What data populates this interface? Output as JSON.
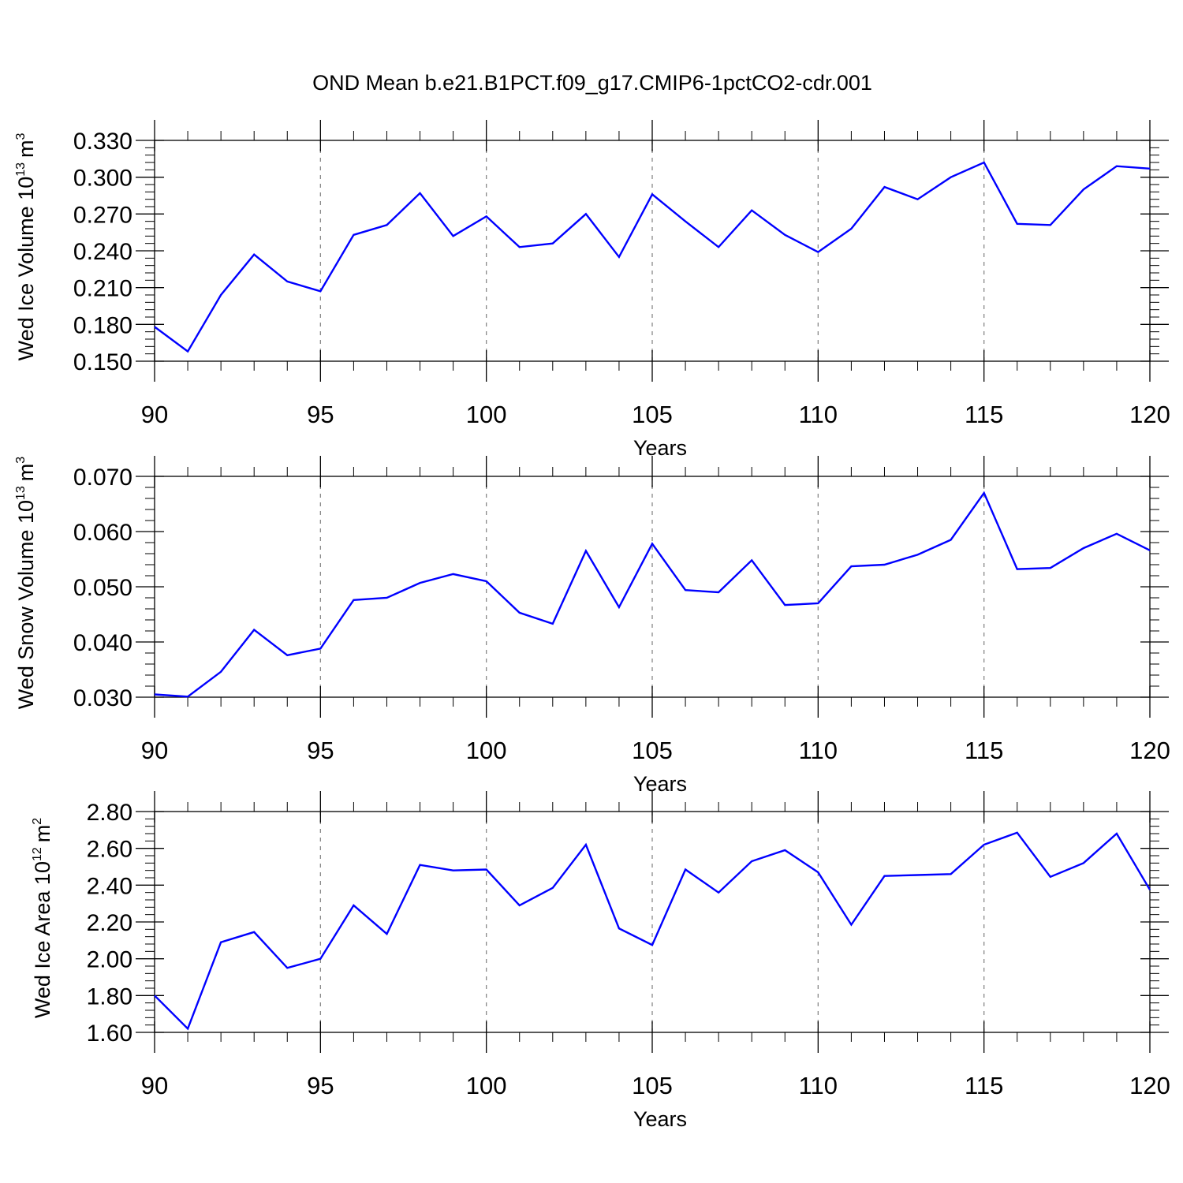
{
  "figure": {
    "title": "OND Mean b.e21.B1PCT.f09_g17.CMIP6-1pctCO2-cdr.001"
  },
  "chart_data": [
    {
      "type": "line",
      "title": "OND Mean b.e21.B1PCT.f09_g17.CMIP6-1pctCO2-cdr.001",
      "xlabel": "Years",
      "ylabel": "Wed Ice Volume 10",
      "ylabel_exponent": "13",
      "ylabel_unit": "m",
      "ylabel_unit_exponent": "3",
      "x": [
        90,
        91,
        92,
        93,
        94,
        95,
        96,
        97,
        98,
        99,
        100,
        101,
        102,
        103,
        104,
        105,
        106,
        107,
        108,
        109,
        110,
        111,
        112,
        113,
        114,
        115,
        116,
        117,
        118,
        119,
        120
      ],
      "series": [
        {
          "name": "Wed Ice Volume",
          "color": "#0000ff",
          "values": [
            0.178,
            0.158,
            0.204,
            0.237,
            0.215,
            0.207,
            0.253,
            0.261,
            0.287,
            0.252,
            0.268,
            0.243,
            0.246,
            0.27,
            0.235,
            0.286,
            0.264,
            0.243,
            0.273,
            0.253,
            0.239,
            0.258,
            0.292,
            0.282,
            0.3,
            0.312,
            0.262,
            0.261,
            0.29,
            0.309,
            0.307
          ]
        }
      ],
      "xlim": [
        90,
        120
      ],
      "ylim": [
        0.15,
        0.33
      ],
      "xticks": [
        "90",
        "95",
        "100",
        "105",
        "110",
        "115",
        "120"
      ],
      "yticks": [
        "0.150",
        "0.180",
        "0.210",
        "0.240",
        "0.270",
        "0.300",
        "0.330"
      ],
      "grid": "vertical dashed at major x ticks"
    },
    {
      "type": "line",
      "xlabel": "Years",
      "ylabel": "Wed Snow Volume 10",
      "ylabel_exponent": "13",
      "ylabel_unit": "m",
      "ylabel_unit_exponent": "3",
      "x": [
        90,
        91,
        92,
        93,
        94,
        95,
        96,
        97,
        98,
        99,
        100,
        101,
        102,
        103,
        104,
        105,
        106,
        107,
        108,
        109,
        110,
        111,
        112,
        113,
        114,
        115,
        116,
        117,
        118,
        119,
        120
      ],
      "series": [
        {
          "name": "Wed Snow Volume",
          "color": "#0000ff",
          "values": [
            0.0305,
            0.0301,
            0.0346,
            0.0422,
            0.0376,
            0.0388,
            0.0476,
            0.048,
            0.0507,
            0.0523,
            0.051,
            0.0453,
            0.0433,
            0.0565,
            0.0463,
            0.0578,
            0.0494,
            0.049,
            0.0548,
            0.0467,
            0.047,
            0.0537,
            0.054,
            0.0558,
            0.0585,
            0.067,
            0.0532,
            0.0534,
            0.057,
            0.0596,
            0.0566
          ]
        }
      ],
      "xlim": [
        90,
        120
      ],
      "ylim": [
        0.03,
        0.07
      ],
      "xticks": [
        "90",
        "95",
        "100",
        "105",
        "110",
        "115",
        "120"
      ],
      "yticks": [
        "0.030",
        "0.040",
        "0.050",
        "0.060",
        "0.070"
      ],
      "grid": "vertical dashed at major x ticks"
    },
    {
      "type": "line",
      "xlabel": "Years",
      "ylabel": "Wed Ice Area 10",
      "ylabel_exponent": "12",
      "ylabel_unit": "m",
      "ylabel_unit_exponent": "2",
      "x": [
        90,
        91,
        92,
        93,
        94,
        95,
        96,
        97,
        98,
        99,
        100,
        101,
        102,
        103,
        104,
        105,
        106,
        107,
        108,
        109,
        110,
        111,
        112,
        113,
        114,
        115,
        116,
        117,
        118,
        119,
        120
      ],
      "series": [
        {
          "name": "Wed Ice Area",
          "color": "#0000ff",
          "values": [
            1.8,
            1.62,
            2.09,
            2.145,
            1.95,
            2.0,
            2.29,
            2.135,
            2.51,
            2.48,
            2.485,
            2.29,
            2.385,
            2.62,
            2.165,
            2.075,
            2.485,
            2.36,
            2.53,
            2.59,
            2.47,
            2.185,
            2.45,
            2.455,
            2.46,
            2.62,
            2.685,
            2.445,
            2.52,
            2.68,
            2.375
          ]
        }
      ],
      "xlim": [
        90,
        120
      ],
      "ylim": [
        1.6,
        2.8
      ],
      "xticks": [
        "90",
        "95",
        "100",
        "105",
        "110",
        "115",
        "120"
      ],
      "yticks": [
        "1.60",
        "1.80",
        "2.00",
        "2.20",
        "2.40",
        "2.60",
        "2.80"
      ],
      "grid": "vertical dashed at major x ticks"
    }
  ]
}
